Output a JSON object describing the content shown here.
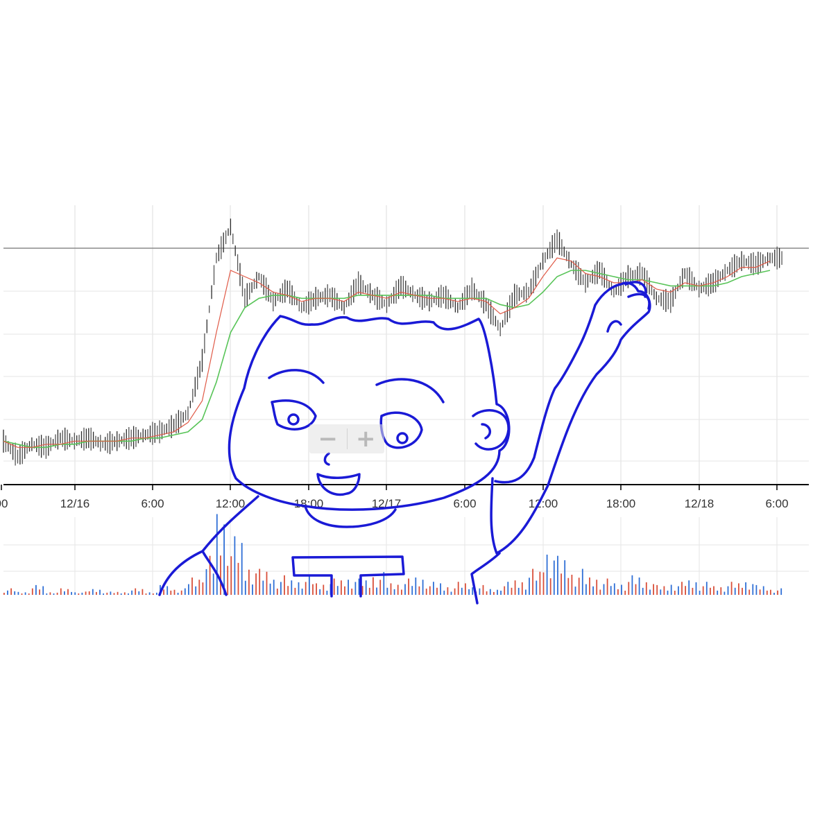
{
  "chart_data": {
    "type": "line",
    "title": "",
    "xlabel": "",
    "ylabel": "",
    "x_ticks": [
      "00",
      "12/16",
      "6:00",
      "12:00",
      "18:00",
      "12/17",
      "6:00",
      "12:00",
      "18:00",
      "12/18",
      "6:00"
    ],
    "y_axis_labels": "not shown",
    "grid": true,
    "legend": "none",
    "price_series": {
      "name": "",
      "color": "#2b2b2b",
      "note": "dense candlestick series",
      "values": [
        0.59,
        0.54,
        0.58,
        0.57,
        0.6,
        0.59,
        0.6,
        0.58,
        0.59,
        0.6,
        0.61,
        0.62,
        0.64,
        0.68,
        0.85,
        1.18,
        1.28,
        1.05,
        1.12,
        1.04,
        1.08,
        1.02,
        1.05,
        1.06,
        1.02,
        1.1,
        1.06,
        1.03,
        1.09,
        1.06,
        1.04,
        1.06,
        1.02,
        1.08,
        1.03,
        0.95,
        1.06,
        1.07,
        1.17,
        1.24,
        1.16,
        1.1,
        1.14,
        1.07,
        1.12,
        1.13,
        1.05,
        1.04,
        1.13,
        1.08,
        1.1,
        1.14,
        1.17,
        1.16,
        1.18
      ]
    },
    "ma_short": {
      "name": "",
      "color": "#e05a47",
      "values": [
        0.59,
        0.57,
        0.57,
        0.58,
        0.58,
        0.59,
        0.59,
        0.59,
        0.59,
        0.6,
        0.6,
        0.61,
        0.62,
        0.65,
        0.72,
        0.94,
        1.14,
        1.12,
        1.1,
        1.07,
        1.06,
        1.04,
        1.05,
        1.05,
        1.04,
        1.07,
        1.06,
        1.05,
        1.07,
        1.06,
        1.05,
        1.05,
        1.04,
        1.05,
        1.04,
        1.0,
        1.02,
        1.05,
        1.12,
        1.18,
        1.17,
        1.13,
        1.12,
        1.1,
        1.1,
        1.11,
        1.08,
        1.07,
        1.1,
        1.09,
        1.1,
        1.12,
        1.15,
        1.15,
        1.17
      ]
    },
    "ma_long": {
      "name": "",
      "color": "#58c458",
      "values": [
        0.59,
        0.58,
        0.57,
        0.57,
        0.58,
        0.58,
        0.59,
        0.59,
        0.59,
        0.59,
        0.6,
        0.6,
        0.61,
        0.62,
        0.66,
        0.78,
        0.94,
        1.02,
        1.05,
        1.06,
        1.06,
        1.05,
        1.05,
        1.05,
        1.05,
        1.06,
        1.06,
        1.06,
        1.06,
        1.06,
        1.06,
        1.05,
        1.05,
        1.05,
        1.05,
        1.03,
        1.02,
        1.03,
        1.07,
        1.12,
        1.14,
        1.14,
        1.13,
        1.12,
        1.11,
        1.11,
        1.1,
        1.09,
        1.09,
        1.09,
        1.09,
        1.1,
        1.12,
        1.13,
        1.14
      ]
    },
    "volume": {
      "color_up": "#d94f3a",
      "color_down": "#2f6fd6",
      "values": [
        2,
        1,
        3,
        1,
        2,
        1,
        2,
        1,
        1,
        2,
        1,
        3,
        2,
        6,
        12,
        28,
        18,
        10,
        8,
        6,
        5,
        6,
        4,
        5,
        6,
        5,
        7,
        4,
        5,
        6,
        4,
        3,
        4,
        3,
        2,
        4,
        5,
        8,
        16,
        12,
        8,
        6,
        5,
        4,
        6,
        5,
        3,
        4,
        5,
        4,
        3,
        4,
        5,
        3,
        2
      ]
    }
  },
  "zoom": {
    "minus": "−",
    "plus": "+"
  },
  "colors": {
    "doodle": "#1a1ad6",
    "grid": "#dedede",
    "axis": "#000000",
    "ref_line": "#8a8a8a"
  }
}
